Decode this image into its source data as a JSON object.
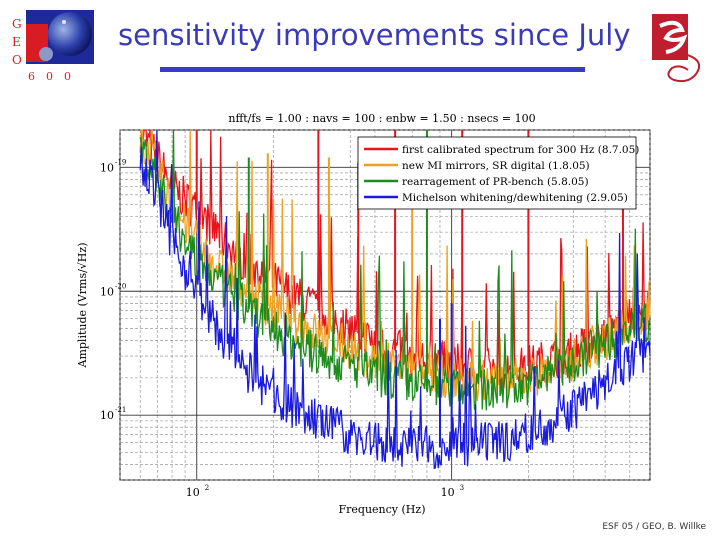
{
  "slide": {
    "title": "sensitivity improvements since July",
    "footer": "ESF 05 / GEO, B. Willke",
    "logo_left_letters": [
      "G",
      "E",
      "O",
      "6",
      "0",
      "0"
    ],
    "colors": {
      "title": "#3b3bb8",
      "rule": "#3a3ac8",
      "logo_right": "#c01e2e",
      "logo_left_blue": "#1e2a9a"
    }
  },
  "chart_data": {
    "type": "line",
    "title": "nfft/fs = 1.00 : navs = 100 : enbw = 1.50 : nsecs = 100",
    "xlabel": "Frequency (Hz)",
    "ylabel": "Amplitude (Vrms/√Hz)",
    "x_scale": "log",
    "y_scale": "log",
    "xlim": [
      50,
      6000
    ],
    "ylim": [
      3e-22,
      2e-19
    ],
    "x_ticks": [
      {
        "value": 100,
        "base": "10",
        "exp": "2"
      },
      {
        "value": 1000,
        "base": "10",
        "exp": "3"
      }
    ],
    "y_ticks": [
      {
        "value": 1e-19,
        "base": "10",
        "exp": "-19"
      },
      {
        "value": 1e-20,
        "base": "10",
        "exp": "-20"
      },
      {
        "value": 1e-21,
        "base": "10",
        "exp": "-21"
      }
    ],
    "grid": true,
    "legend_position": "top-right",
    "series": [
      {
        "name": "first calibrated spectrum for 300 Hz (8.7.05)",
        "color": "#e8141c",
        "points": [
          [
            60,
            2e-19
          ],
          [
            70,
            1.2e-19
          ],
          [
            80,
            7e-20
          ],
          [
            100,
            4.5e-20
          ],
          [
            120,
            3e-20
          ],
          [
            150,
            1.8e-20
          ],
          [
            200,
            1.2e-20
          ],
          [
            300,
            7e-21
          ],
          [
            400,
            5e-21
          ],
          [
            500,
            3.8e-21
          ],
          [
            700,
            3e-21
          ],
          [
            1000,
            2.6e-21
          ],
          [
            1500,
            2.3e-21
          ],
          [
            2000,
            2.5e-21
          ],
          [
            3000,
            3.2e-21
          ],
          [
            4000,
            4.5e-21
          ],
          [
            5000,
            6e-21
          ],
          [
            6000,
            7e-21
          ]
        ],
        "peaks": [
          [
            100,
            2e-19
          ],
          [
            300,
            2e-19
          ],
          [
            430,
            1.1e-19
          ],
          [
            600,
            2e-19
          ],
          [
            1100,
            2e-19
          ],
          [
            2000,
            2e-19
          ],
          [
            4700,
            6e-20
          ]
        ]
      },
      {
        "name": "new MI mirrors, SR digital (1.8.05)",
        "color": "#f0a020",
        "points": [
          [
            60,
            1.8e-19
          ],
          [
            70,
            1e-19
          ],
          [
            80,
            5e-20
          ],
          [
            100,
            2.5e-20
          ],
          [
            120,
            1.6e-20
          ],
          [
            150,
            1.1e-20
          ],
          [
            200,
            7e-21
          ],
          [
            300,
            4.5e-21
          ],
          [
            400,
            3.5e-21
          ],
          [
            500,
            2.8e-21
          ],
          [
            700,
            2.3e-21
          ],
          [
            1000,
            2e-21
          ],
          [
            1500,
            1.9e-21
          ],
          [
            2000,
            2e-21
          ],
          [
            3000,
            2.8e-21
          ],
          [
            4000,
            4e-21
          ],
          [
            5000,
            5.5e-21
          ],
          [
            6000,
            6.5e-21
          ]
        ],
        "peaks": [
          [
            190,
            1.3e-19
          ],
          [
            330,
            1.2e-19
          ],
          [
            700,
            1.1e-19
          ]
        ]
      },
      {
        "name": "rearragement of PR-bench (5.8.05)",
        "color": "#1c8c1c",
        "points": [
          [
            60,
            1.5e-19
          ],
          [
            70,
            8e-20
          ],
          [
            80,
            4e-20
          ],
          [
            100,
            1.8e-20
          ],
          [
            120,
            1.2e-20
          ],
          [
            150,
            8e-21
          ],
          [
            200,
            5e-21
          ],
          [
            300,
            3e-21
          ],
          [
            400,
            2.5e-21
          ],
          [
            500,
            2.1e-21
          ],
          [
            700,
            1.8e-21
          ],
          [
            1000,
            1.6e-21
          ],
          [
            1500,
            1.6e-21
          ],
          [
            2000,
            1.8e-21
          ],
          [
            3000,
            2.6e-21
          ],
          [
            4000,
            3.8e-21
          ],
          [
            5000,
            5e-21
          ],
          [
            6000,
            6e-21
          ]
        ],
        "peaks": [
          [
            160,
            1.2e-19
          ],
          [
            800,
            2e-19
          ]
        ]
      },
      {
        "name": "Michelson whitening/dewhitening (2.9.05)",
        "color": "#1a1ae0",
        "points": [
          [
            60,
            1.2e-19
          ],
          [
            70,
            6e-20
          ],
          [
            80,
            2.5e-20
          ],
          [
            100,
            1e-20
          ],
          [
            120,
            5e-21
          ],
          [
            150,
            2.5e-21
          ],
          [
            200,
            1.4e-21
          ],
          [
            300,
            9e-22
          ],
          [
            400,
            7e-22
          ],
          [
            500,
            6e-22
          ],
          [
            700,
            5.5e-22
          ],
          [
            1000,
            5.5e-22
          ],
          [
            1500,
            6e-22
          ],
          [
            2000,
            7e-22
          ],
          [
            3000,
            1.1e-21
          ],
          [
            4000,
            1.8e-21
          ],
          [
            5000,
            2.8e-21
          ],
          [
            6000,
            3.5e-21
          ]
        ],
        "peaks": [
          [
            900,
            6e-21
          ],
          [
            1000,
            8e-21
          ]
        ]
      }
    ]
  }
}
